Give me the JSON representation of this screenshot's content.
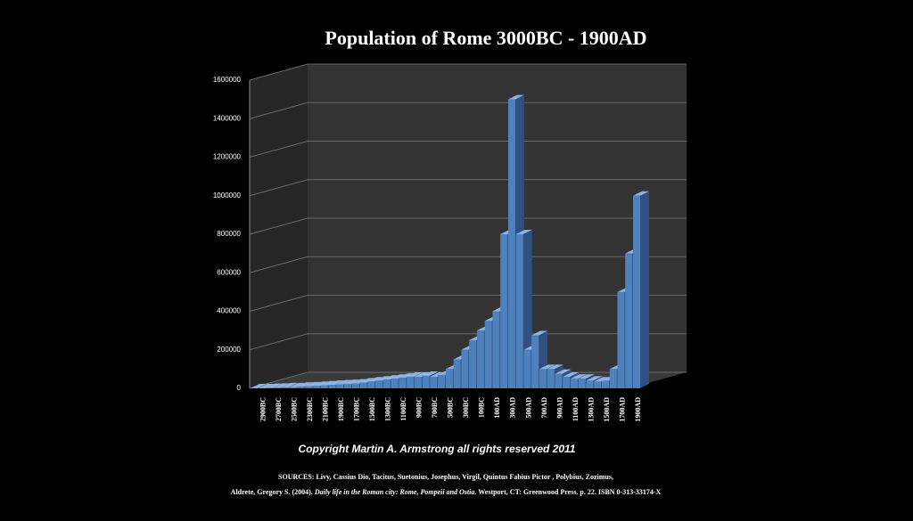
{
  "chart_data": {
    "type": "bar3d",
    "title": "Population of Rome 3000BC - 1900AD",
    "categories": [
      null,
      "2900BC",
      null,
      "2700BC",
      null,
      "2500BC",
      null,
      "2300BC",
      null,
      "2100BC",
      null,
      "1900BC",
      null,
      "1700BC",
      null,
      "1500BC",
      null,
      "1300BC",
      null,
      "1100BC",
      null,
      "900BC",
      null,
      "700BC",
      null,
      "500BC",
      null,
      "300BC",
      null,
      "100BC",
      null,
      "100AD",
      null,
      "300AD",
      null,
      "500AD",
      null,
      "700AD",
      null,
      "900AD",
      null,
      "1100AD",
      null,
      "1300AD",
      null,
      "1500AD",
      null,
      "1700AD",
      null,
      "1900AD"
    ],
    "values": [
      0,
      0,
      2000,
      3000,
      5000,
      5000,
      8000,
      10000,
      12000,
      15000,
      18000,
      20000,
      22000,
      25000,
      30000,
      35000,
      40000,
      45000,
      50000,
      55000,
      60000,
      60000,
      65000,
      60000,
      70000,
      100000,
      150000,
      200000,
      250000,
      300000,
      350000,
      400000,
      800000,
      1500000,
      800000,
      200000,
      275000,
      100000,
      100000,
      75000,
      60000,
      50000,
      50000,
      40000,
      35000,
      40000,
      100000,
      500000,
      700000,
      1000000
    ],
    "color": "#4f81bd",
    "ylim": [
      0,
      1600000
    ],
    "yticks": [
      0,
      200000,
      400000,
      600000,
      800000,
      1000000,
      1200000,
      1400000,
      1600000
    ],
    "grid": true,
    "copyright": "Copyright Martin A. Armstrong all rights reserved 2011",
    "sources": [
      "SOURCES: Livy, Cassius Dio, Tacitus, Suetonius, Josephus, Virgil, Quintus Fabius Pictor , Polybius, Zozimus,",
      "Aldrete, Gregory S. (2004). ",
      "Daily life in the Roman city: Rome, Pompeii and Ostia",
      ". Westport, CT: Greenwood Press. p. 22. ISBN 0-313-33174-X"
    ]
  }
}
